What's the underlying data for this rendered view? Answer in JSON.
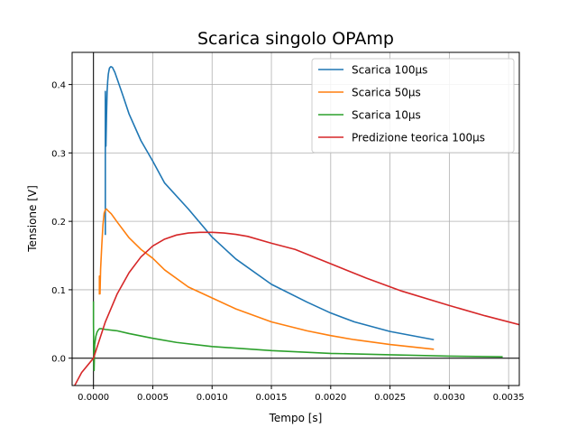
{
  "chart_data": {
    "type": "line",
    "title": "Scarica singolo OPAmp",
    "xlabel": "Tempo [s]",
    "ylabel": "Tensione [V]",
    "xlim": [
      -0.00018,
      0.00359
    ],
    "ylim": [
      -0.04,
      0.447
    ],
    "grid": true,
    "legend_position": "top-right",
    "x_ticks": [
      0.0,
      0.0005,
      0.001,
      0.0015,
      0.002,
      0.0025,
      0.003,
      0.0035
    ],
    "x_tick_labels": [
      "0.0000",
      "0.0005",
      "0.0010",
      "0.0015",
      "0.0020",
      "0.0025",
      "0.0030",
      "0.0035"
    ],
    "y_ticks": [
      0.0,
      0.1,
      0.2,
      0.3,
      0.4
    ],
    "y_tick_labels": [
      "0.0",
      "0.1",
      "0.2",
      "0.3",
      "0.4"
    ],
    "series": [
      {
        "name": "Scarica 100μs",
        "color": "#1f77b4",
        "x": [
          0.0001,
          0.0001,
          0.000105,
          0.00011,
          0.000115,
          0.00012,
          0.000125,
          0.00013,
          0.000135,
          0.00014,
          0.000145,
          0.00015,
          0.00016,
          0.00018,
          0.0002,
          0.00025,
          0.0003,
          0.0004,
          0.0005,
          0.0006,
          0.0008,
          0.001,
          0.0012,
          0.0015,
          0.0018,
          0.002,
          0.0022,
          0.0025,
          0.00287
        ],
        "y": [
          0.18,
          0.39,
          0.31,
          0.355,
          0.39,
          0.405,
          0.415,
          0.42,
          0.424,
          0.425,
          0.426,
          0.426,
          0.425,
          0.418,
          0.408,
          0.383,
          0.357,
          0.318,
          0.288,
          0.256,
          0.218,
          0.177,
          0.145,
          0.108,
          0.082,
          0.066,
          0.053,
          0.039,
          0.027
        ]
      },
      {
        "name": "Scarica 50μs",
        "color": "#ff7f0e",
        "x": [
          5e-05,
          5e-05,
          5.5e-05,
          6e-05,
          7e-05,
          8e-05,
          9e-05,
          0.0001,
          0.00011,
          0.00012,
          0.00015,
          0.0002,
          0.0003,
          0.0004,
          0.0005,
          0.0006,
          0.0008,
          0.001,
          0.0012,
          0.0015,
          0.0018,
          0.002,
          0.0022,
          0.0025,
          0.00287
        ],
        "y": [
          0.093,
          0.12,
          0.094,
          0.13,
          0.165,
          0.195,
          0.212,
          0.217,
          0.218,
          0.216,
          0.211,
          0.199,
          0.176,
          0.159,
          0.146,
          0.129,
          0.104,
          0.088,
          0.072,
          0.053,
          0.04,
          0.033,
          0.027,
          0.02,
          0.013
        ]
      },
      {
        "name": "Scarica 10μs",
        "color": "#2ca02c",
        "x": [
          0.0,
          0.0,
          5e-06,
          1e-05,
          2e-05,
          3e-05,
          4e-05,
          5e-05,
          7e-05,
          0.0001,
          0.0002,
          0.0003,
          0.0005,
          0.0007,
          0.001,
          0.0015,
          0.002,
          0.0025,
          0.003,
          0.00345
        ],
        "y": [
          0.083,
          0.05,
          -0.018,
          0.02,
          0.032,
          0.038,
          0.041,
          0.043,
          0.043,
          0.042,
          0.04,
          0.036,
          0.029,
          0.023,
          0.017,
          0.011,
          0.007,
          0.005,
          0.003,
          0.002
        ]
      },
      {
        "name": "Predizione teorica 100μs",
        "color": "#d62728",
        "x": [
          -0.00018,
          -0.0001,
          0.0,
          0.0001,
          0.0002,
          0.0003,
          0.0004,
          0.0005,
          0.0006,
          0.0007,
          0.0008,
          0.0009,
          0.001,
          0.0011,
          0.0012,
          0.0013,
          0.0015,
          0.0017,
          0.002,
          0.0023,
          0.0026,
          0.003,
          0.0033,
          0.00359
        ],
        "y": [
          -0.047,
          -0.021,
          0.0,
          0.053,
          0.094,
          0.125,
          0.148,
          0.164,
          0.174,
          0.18,
          0.183,
          0.184,
          0.184,
          0.183,
          0.181,
          0.178,
          0.168,
          0.159,
          0.138,
          0.117,
          0.098,
          0.077,
          0.062,
          0.049
        ]
      }
    ]
  }
}
